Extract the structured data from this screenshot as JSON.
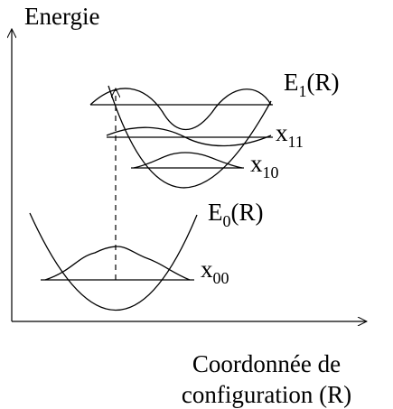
{
  "axes": {
    "y_label": "Energie",
    "x_label": [
      "Coordonnée de",
      "configuration (R)"
    ]
  },
  "labels": [
    {
      "symbol": "E",
      "sub": "1",
      "suffix": "(R)"
    },
    {
      "symbol": "x",
      "sub": "11"
    },
    {
      "symbol": "x",
      "sub": "10"
    },
    {
      "symbol": "E",
      "sub": "0",
      "suffix": "(R)"
    },
    {
      "symbol": "x",
      "sub": "00"
    }
  ]
}
